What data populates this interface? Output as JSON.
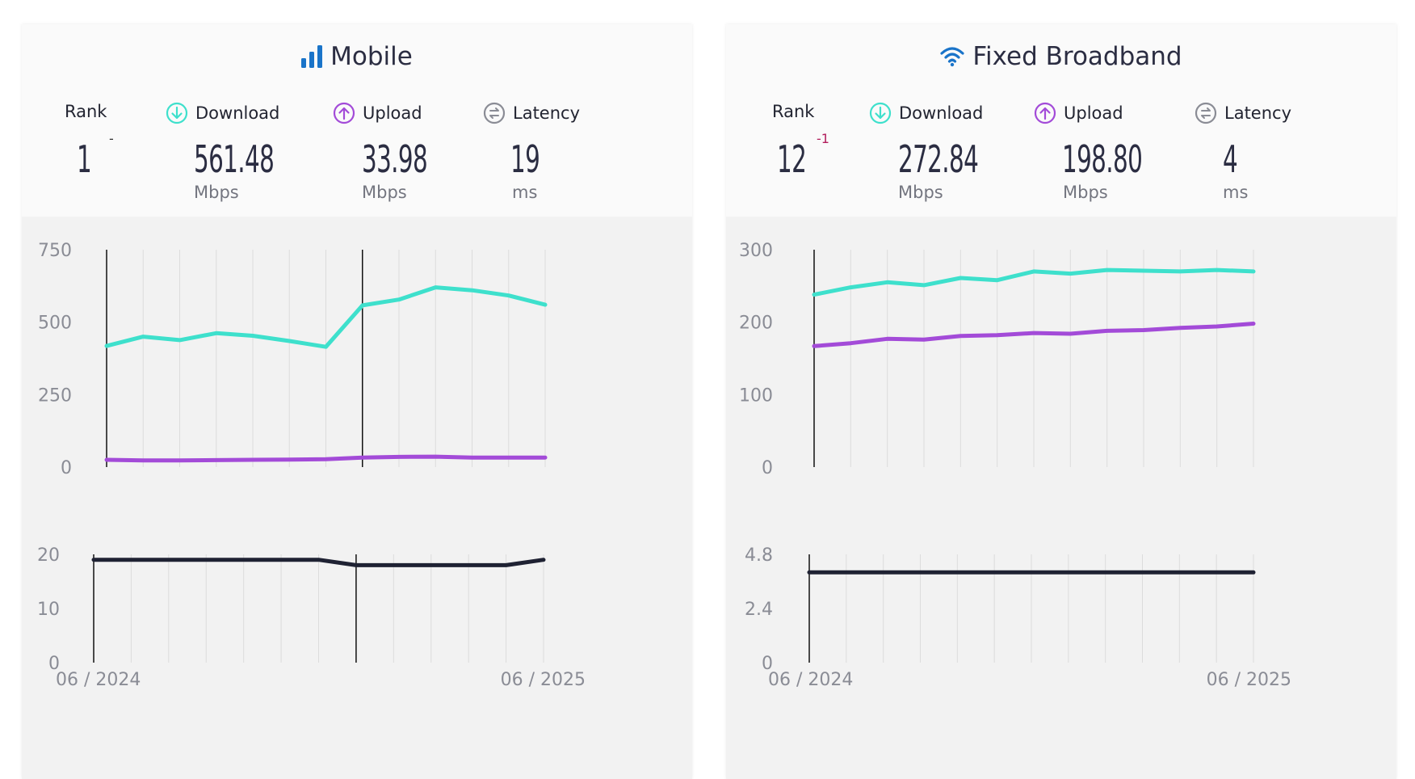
{
  "colors": {
    "download": "#3ee0cc",
    "upload": "#a34bd8",
    "latency": "#1f2233",
    "icon_blue": "#1a74c9",
    "latency_icon": "#8a8c95"
  },
  "mobile": {
    "title": "Mobile",
    "icon": "signal-bars-icon",
    "rank_label": "Rank",
    "rank": "1",
    "rank_change": "-",
    "download_label": "Download",
    "download": "561.48",
    "download_unit": "Mbps",
    "upload_label": "Upload",
    "upload": "33.98",
    "upload_unit": "Mbps",
    "latency_label": "Latency",
    "latency": "19",
    "latency_unit": "ms",
    "x_start": "06 / 2024",
    "x_end": "06 / 2025"
  },
  "fixed": {
    "title": "Fixed Broadband",
    "icon": "wifi-icon",
    "rank_label": "Rank",
    "rank": "12",
    "rank_change": "-1",
    "download_label": "Download",
    "download": "272.84",
    "download_unit": "Mbps",
    "upload_label": "Upload",
    "upload": "198.80",
    "upload_unit": "Mbps",
    "latency_label": "Latency",
    "latency": "4",
    "latency_unit": "ms",
    "x_start": "06 / 2024",
    "x_end": "06 / 2025"
  },
  "chart_data": [
    {
      "type": "line",
      "panel": "mobile-speed",
      "x": [
        "06 / 2024",
        "07 / 2024",
        "08 / 2024",
        "09 / 2024",
        "10 / 2024",
        "11 / 2024",
        "12 / 2024",
        "01 / 2025",
        "02 / 2025",
        "03 / 2025",
        "04 / 2025",
        "05 / 2025",
        "06 / 2025"
      ],
      "ylim": [
        0,
        750
      ],
      "yticks": [
        "750",
        "500",
        "250",
        "0"
      ],
      "series": [
        {
          "key": "download",
          "values": [
            418,
            450,
            438,
            462,
            453,
            435,
            415,
            558,
            578,
            620,
            610,
            592,
            560
          ]
        },
        {
          "key": "upload",
          "values": [
            25,
            23,
            23,
            24,
            25,
            26,
            27,
            33,
            35,
            36,
            33,
            33,
            33
          ]
        }
      ],
      "markers": [
        0,
        7
      ]
    },
    {
      "type": "line",
      "panel": "mobile-latency",
      "x": [
        "06 / 2024",
        "07 / 2024",
        "08 / 2024",
        "09 / 2024",
        "10 / 2024",
        "11 / 2024",
        "12 / 2024",
        "01 / 2025",
        "02 / 2025",
        "03 / 2025",
        "04 / 2025",
        "05 / 2025",
        "06 / 2025"
      ],
      "ylim": [
        0,
        20
      ],
      "yticks": [
        "20",
        "10",
        "0"
      ],
      "series": [
        {
          "key": "latency",
          "values": [
            19,
            19,
            19,
            19,
            19,
            19,
            19,
            18,
            18,
            18,
            18,
            18,
            19
          ]
        }
      ],
      "markers": [
        0,
        7
      ]
    },
    {
      "type": "line",
      "panel": "fixed-speed",
      "x": [
        "06 / 2024",
        "07 / 2024",
        "08 / 2024",
        "09 / 2024",
        "10 / 2024",
        "11 / 2024",
        "12 / 2024",
        "01 / 2025",
        "02 / 2025",
        "03 / 2025",
        "04 / 2025",
        "05 / 2025",
        "06 / 2025"
      ],
      "ylim": [
        0,
        300
      ],
      "yticks": [
        "300",
        "200",
        "100",
        "0"
      ],
      "series": [
        {
          "key": "download",
          "values": [
            238,
            248,
            255,
            251,
            261,
            258,
            270,
            267,
            272,
            271,
            270,
            272,
            270
          ]
        },
        {
          "key": "upload",
          "values": [
            167,
            171,
            177,
            176,
            181,
            182,
            185,
            184,
            188,
            189,
            192,
            194,
            198
          ]
        }
      ],
      "markers": [
        0
      ]
    },
    {
      "type": "line",
      "panel": "fixed-latency",
      "x": [
        "06 / 2024",
        "07 / 2024",
        "08 / 2024",
        "09 / 2024",
        "10 / 2024",
        "11 / 2024",
        "12 / 2024",
        "01 / 2025",
        "02 / 2025",
        "03 / 2025",
        "04 / 2025",
        "05 / 2025",
        "06 / 2025"
      ],
      "ylim": [
        0,
        4.8
      ],
      "yticks": [
        "4.8",
        "2.4",
        "0"
      ],
      "series": [
        {
          "key": "latency",
          "values": [
            4,
            4,
            4,
            4,
            4,
            4,
            4,
            4,
            4,
            4,
            4,
            4,
            4
          ]
        }
      ],
      "markers": [
        0
      ]
    }
  ]
}
